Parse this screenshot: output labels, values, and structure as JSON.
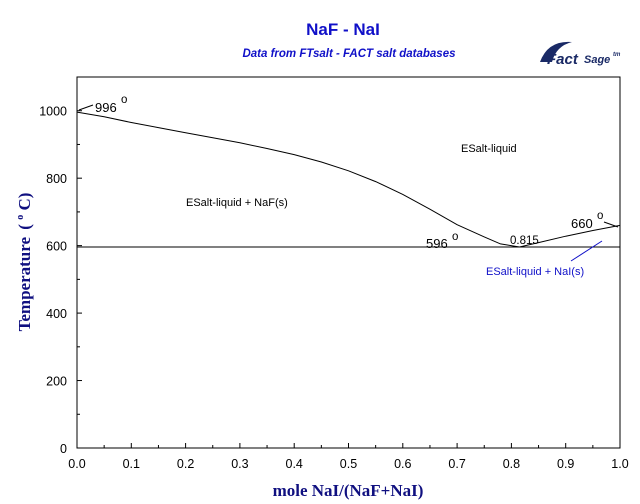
{
  "chart_data": {
    "type": "line",
    "title": "NaF - NaI",
    "subtitle": "Data from FTsalt - FACT salt databases",
    "xlabel": "mole NaI/(NaF+NaI)",
    "ylabel_main": "Temperature",
    "ylabel_unit": "(",
    "ylabel_degree": "o",
    "ylabel_c": "C)",
    "xlim": [
      0,
      1
    ],
    "ylim": [
      0,
      1100
    ],
    "x_ticks": [
      0.0,
      0.1,
      0.2,
      0.3,
      0.4,
      0.5,
      0.6,
      0.7,
      0.8,
      0.9,
      1.0
    ],
    "x_tick_labels": [
      "0.0",
      "0.1",
      "0.2",
      "0.3",
      "0.4",
      "0.5",
      "0.6",
      "0.7",
      "0.8",
      "0.9",
      "1.0"
    ],
    "y_ticks": [
      0,
      200,
      400,
      600,
      800,
      1000
    ],
    "y_tick_labels": [
      "0",
      "200",
      "400",
      "600",
      "800",
      "1000"
    ],
    "grid": false,
    "series": [
      {
        "values": [
          [
            0.0,
            996
          ],
          [
            0.05,
            982
          ],
          [
            0.1,
            965
          ],
          [
            0.15,
            950
          ],
          [
            0.2,
            935
          ],
          [
            0.25,
            920
          ],
          [
            0.3,
            905
          ],
          [
            0.35,
            888
          ],
          [
            0.4,
            870
          ],
          [
            0.45,
            848
          ],
          [
            0.5,
            822
          ],
          [
            0.55,
            790
          ],
          [
            0.6,
            752
          ],
          [
            0.65,
            708
          ],
          [
            0.7,
            662
          ],
          [
            0.75,
            626
          ],
          [
            0.78,
            605
          ],
          [
            0.815,
            596
          ],
          [
            0.85,
            609
          ],
          [
            0.9,
            628
          ],
          [
            0.95,
            645
          ],
          [
            1.0,
            660
          ]
        ]
      },
      {
        "values": [
          [
            0.0,
            596
          ],
          [
            1.0,
            596
          ]
        ]
      }
    ],
    "annotations": {
      "liquid": "ESalt-liquid",
      "liquid_naf": "ESalt-liquid + NaF(s)",
      "liquid_nai": "ESalt-liquid + NaI(s)",
      "mp_naf": "996",
      "mp_nai": "660",
      "eutectic_t": "596",
      "eutectic_x": "0.815",
      "degree": "o"
    }
  },
  "logo": {
    "word1": "Fact",
    "word2": "Sage",
    "tm": "tm"
  }
}
